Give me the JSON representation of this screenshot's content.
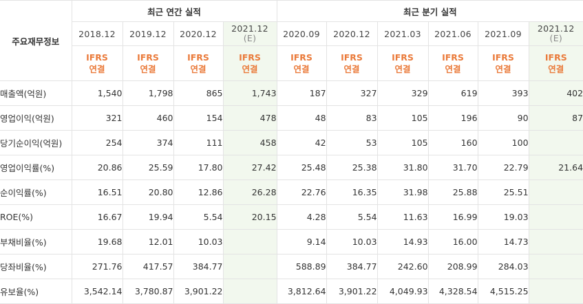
{
  "table": {
    "row_header": "주요재무정보",
    "annual_group": "최근 연간 실적",
    "quarter_group": "최근 분기 실적",
    "periods": [
      {
        "date": "2018.12",
        "estimate": false,
        "ifrs": "IFRS",
        "basis": "연결"
      },
      {
        "date": "2019.12",
        "estimate": false,
        "ifrs": "IFRS",
        "basis": "연결"
      },
      {
        "date": "2020.12",
        "estimate": false,
        "ifrs": "IFRS",
        "basis": "연결"
      },
      {
        "date": "2021.12",
        "estimate": true,
        "mark": "(E)",
        "ifrs": "IFRS",
        "basis": "연결"
      },
      {
        "date": "2020.09",
        "estimate": false,
        "ifrs": "IFRS",
        "basis": "연결"
      },
      {
        "date": "2020.12",
        "estimate": false,
        "ifrs": "IFRS",
        "basis": "연결"
      },
      {
        "date": "2021.03",
        "estimate": false,
        "ifrs": "IFRS",
        "basis": "연결"
      },
      {
        "date": "2021.06",
        "estimate": false,
        "ifrs": "IFRS",
        "basis": "연결"
      },
      {
        "date": "2021.09",
        "estimate": false,
        "ifrs": "IFRS",
        "basis": "연결"
      },
      {
        "date": "2021.12",
        "estimate": true,
        "mark": "(E)",
        "ifrs": "IFRS",
        "basis": "연결"
      }
    ],
    "rows": [
      {
        "label": "매출액(억원)",
        "values": [
          "1,540",
          "1,798",
          "865",
          "1,743",
          "187",
          "327",
          "329",
          "619",
          "393",
          "402"
        ]
      },
      {
        "label": "영업이익(억원)",
        "values": [
          "321",
          "460",
          "154",
          "478",
          "48",
          "83",
          "105",
          "196",
          "90",
          "87"
        ]
      },
      {
        "label": "당기순이익(억원)",
        "values": [
          "254",
          "374",
          "111",
          "458",
          "42",
          "53",
          "105",
          "160",
          "100",
          ""
        ]
      },
      {
        "label": "영업이익률(%)",
        "values": [
          "20.86",
          "25.59",
          "17.80",
          "27.42",
          "25.48",
          "25.38",
          "31.80",
          "31.70",
          "22.79",
          "21.64"
        ]
      },
      {
        "label": "순이익률(%)",
        "values": [
          "16.51",
          "20.80",
          "12.86",
          "26.28",
          "22.76",
          "16.35",
          "31.98",
          "25.88",
          "25.51",
          ""
        ]
      },
      {
        "label": "ROE(%)",
        "values": [
          "16.67",
          "19.94",
          "5.54",
          "20.15",
          "4.28",
          "5.54",
          "11.63",
          "16.99",
          "19.03",
          ""
        ]
      },
      {
        "label": "부채비율(%)",
        "values": [
          "19.68",
          "12.01",
          "10.03",
          "",
          "9.14",
          "10.03",
          "14.93",
          "16.00",
          "14.73",
          ""
        ]
      },
      {
        "label": "당좌비율(%)",
        "values": [
          "271.76",
          "417.57",
          "384.77",
          "",
          "588.89",
          "384.77",
          "242.60",
          "208.99",
          "284.03",
          ""
        ]
      },
      {
        "label": "유보율(%)",
        "values": [
          "3,542.14",
          "3,780.87",
          "3,901.22",
          "",
          "3,812.64",
          "3,901.22",
          "4,049.93",
          "4,328.54",
          "4,515.25",
          ""
        ]
      }
    ]
  },
  "colors": {
    "ifrs_text": "#ea7a3a",
    "estimate_bg": "#f2f8ee",
    "border": "#e3e3e3"
  }
}
